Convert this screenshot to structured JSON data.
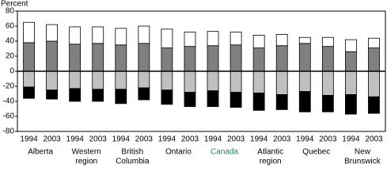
{
  "chart_data": {
    "type": "stacked-bar",
    "y_label": "Percent",
    "categories": [
      "1994",
      "2003",
      "1994",
      "2003",
      "1994",
      "2003",
      "1994",
      "2003",
      "1994",
      "2003",
      "1994",
      "2003",
      "1994",
      "2003",
      "1994",
      "2003"
    ],
    "groups": [
      {
        "lines": [
          "Alberta"
        ],
        "color": "#000000"
      },
      {
        "lines": [
          "Western",
          "region"
        ],
        "color": "#000000"
      },
      {
        "lines": [
          "British",
          "Columbia"
        ],
        "color": "#000000"
      },
      {
        "lines": [
          "Ontario"
        ],
        "color": "#000000"
      },
      {
        "lines": [
          "Canada"
        ],
        "color": "#1a8a5a"
      },
      {
        "lines": [
          "Atlantic",
          "region"
        ],
        "color": "#000000"
      },
      {
        "lines": [
          "Quebec"
        ],
        "color": "#000000"
      },
      {
        "lines": [
          "New",
          "Brunswick"
        ],
        "color": "#000000"
      }
    ],
    "series": [
      {
        "color": "#808080",
        "values": [
          38,
          40,
          36,
          37,
          35,
          37,
          31,
          33,
          34,
          35,
          31,
          34,
          37,
          33,
          26,
          31
        ]
      },
      {
        "color": "#ffffff",
        "values": [
          27,
          22,
          23,
          22,
          22,
          23,
          25,
          19,
          19,
          17,
          17,
          15,
          8,
          12,
          16,
          13
        ]
      },
      {
        "color": "#c0c0c0",
        "values": [
          -21,
          -25,
          -23,
          -24,
          -24,
          -22,
          -25,
          -28,
          -26,
          -28,
          -29,
          -31,
          -27,
          -32,
          -31,
          -34
        ]
      },
      {
        "color": "#000000",
        "values": [
          -15,
          -12,
          -17,
          -16,
          -19,
          -16,
          -19,
          -19,
          -21,
          -20,
          -23,
          -20,
          -27,
          -22,
          -26,
          -22
        ]
      }
    ],
    "ylim": [
      -80,
      80
    ],
    "yticks": [
      80,
      60,
      40,
      20,
      0,
      -20,
      -40,
      -60,
      -80
    ]
  }
}
